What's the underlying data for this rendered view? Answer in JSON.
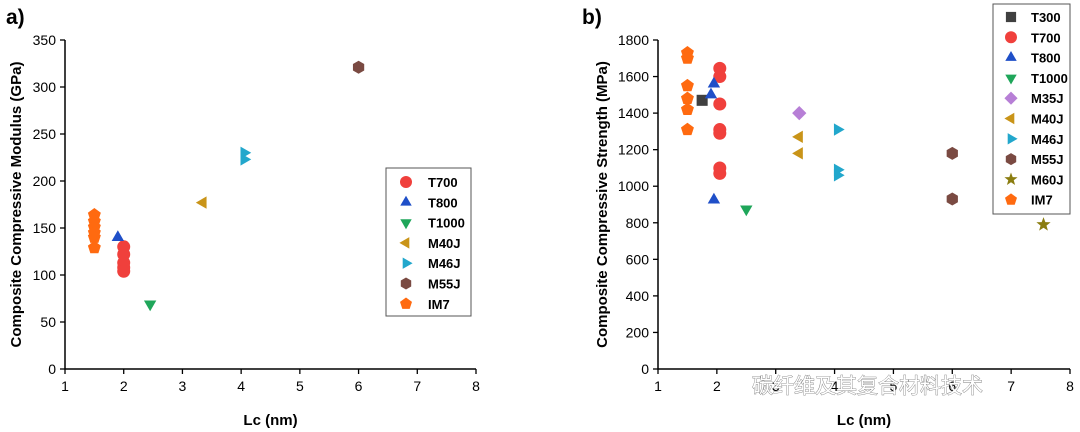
{
  "watermark": "碳纤维及其复合材料技术",
  "colors": {
    "T300": "#404040",
    "T700": "#f0403c",
    "T800": "#1f4fc8",
    "T1000": "#1fa65a",
    "M35J": "#b77fd6",
    "M40J": "#c99418",
    "M46J": "#22a7cc",
    "M55J": "#7a4a42",
    "M60J": "#8b7d10",
    "IM7": "#ff6a10"
  },
  "markers": {
    "T300": "square",
    "T700": "circle",
    "T800": "triangle-up",
    "T1000": "triangle-down",
    "M35J": "diamond",
    "M40J": "triangle-left",
    "M46J": "triangle-right",
    "M55J": "hexagon",
    "M60J": "star",
    "IM7": "pentagon"
  },
  "chart_data": [
    {
      "type": "scatter",
      "panel_label": "a)",
      "title": "",
      "xlabel": "Lc (nm)",
      "ylabel": "Composite Compressive Modulus (GPa)",
      "xlim": [
        1,
        8
      ],
      "ylim": [
        0,
        350
      ],
      "xticks": [
        "1",
        "2",
        "3",
        "4",
        "5",
        "6",
        "7",
        "8"
      ],
      "yticks": [
        "0",
        "50",
        "100",
        "150",
        "200",
        "250",
        "300",
        "350"
      ],
      "legend_position": "center-right",
      "series": [
        {
          "name": "T700",
          "points": [
            [
              2.0,
              130
            ],
            [
              2.0,
              122
            ],
            [
              2.0,
              113
            ],
            [
              2.0,
              108
            ],
            [
              2.0,
              104
            ]
          ]
        },
        {
          "name": "T800",
          "points": [
            [
              1.9,
              140
            ]
          ]
        },
        {
          "name": "T1000",
          "points": [
            [
              2.45,
              69
            ]
          ]
        },
        {
          "name": "M40J",
          "points": [
            [
              3.35,
              177
            ]
          ]
        },
        {
          "name": "M46J",
          "points": [
            [
              4.05,
              230
            ],
            [
              4.05,
              223
            ]
          ]
        },
        {
          "name": "M55J",
          "points": [
            [
              6.0,
              321
            ]
          ]
        },
        {
          "name": "IM7",
          "points": [
            [
              1.5,
              164
            ],
            [
              1.5,
              157
            ],
            [
              1.5,
              151
            ],
            [
              1.5,
              145
            ],
            [
              1.5,
              140
            ],
            [
              1.5,
              129
            ]
          ]
        }
      ]
    },
    {
      "type": "scatter",
      "panel_label": "b)",
      "title": "",
      "xlabel": "Lc (nm)",
      "ylabel": "Composite Compressive Strength (MPa)",
      "xlim": [
        1,
        8
      ],
      "ylim": [
        0,
        1800
      ],
      "xticks": [
        "1",
        "2",
        "3",
        "4",
        "5",
        "6",
        "7",
        "8"
      ],
      "yticks": [
        "0",
        "200",
        "400",
        "600",
        "800",
        "1000",
        "1200",
        "1400",
        "1600",
        "1800"
      ],
      "legend_position": "top-right",
      "series": [
        {
          "name": "T300",
          "points": [
            [
              1.75,
              1470
            ]
          ]
        },
        {
          "name": "T700",
          "points": [
            [
              2.05,
              1645
            ],
            [
              2.05,
              1600
            ],
            [
              2.05,
              1450
            ],
            [
              2.05,
              1310
            ],
            [
              2.05,
              1290
            ],
            [
              2.05,
              1100
            ],
            [
              2.05,
              1070
            ]
          ]
        },
        {
          "name": "T800",
          "points": [
            [
              1.95,
              1560
            ],
            [
              1.9,
              1500
            ],
            [
              1.95,
              925
            ]
          ]
        },
        {
          "name": "T1000",
          "points": [
            [
              2.5,
              875
            ]
          ]
        },
        {
          "name": "M35J",
          "points": [
            [
              3.4,
              1400
            ]
          ]
        },
        {
          "name": "M40J",
          "points": [
            [
              3.4,
              1270
            ],
            [
              3.4,
              1180
            ]
          ]
        },
        {
          "name": "M46J",
          "points": [
            [
              4.05,
              1310
            ],
            [
              4.05,
              1090
            ],
            [
              4.05,
              1060
            ]
          ]
        },
        {
          "name": "M55J",
          "points": [
            [
              6.0,
              1180
            ],
            [
              6.0,
              930
            ]
          ]
        },
        {
          "name": "M60J",
          "points": [
            [
              7.55,
              790
            ]
          ]
        },
        {
          "name": "IM7",
          "points": [
            [
              1.5,
              1730
            ],
            [
              1.5,
              1700
            ],
            [
              1.5,
              1550
            ],
            [
              1.5,
              1480
            ],
            [
              1.5,
              1420
            ],
            [
              1.5,
              1310
            ]
          ]
        }
      ]
    }
  ]
}
